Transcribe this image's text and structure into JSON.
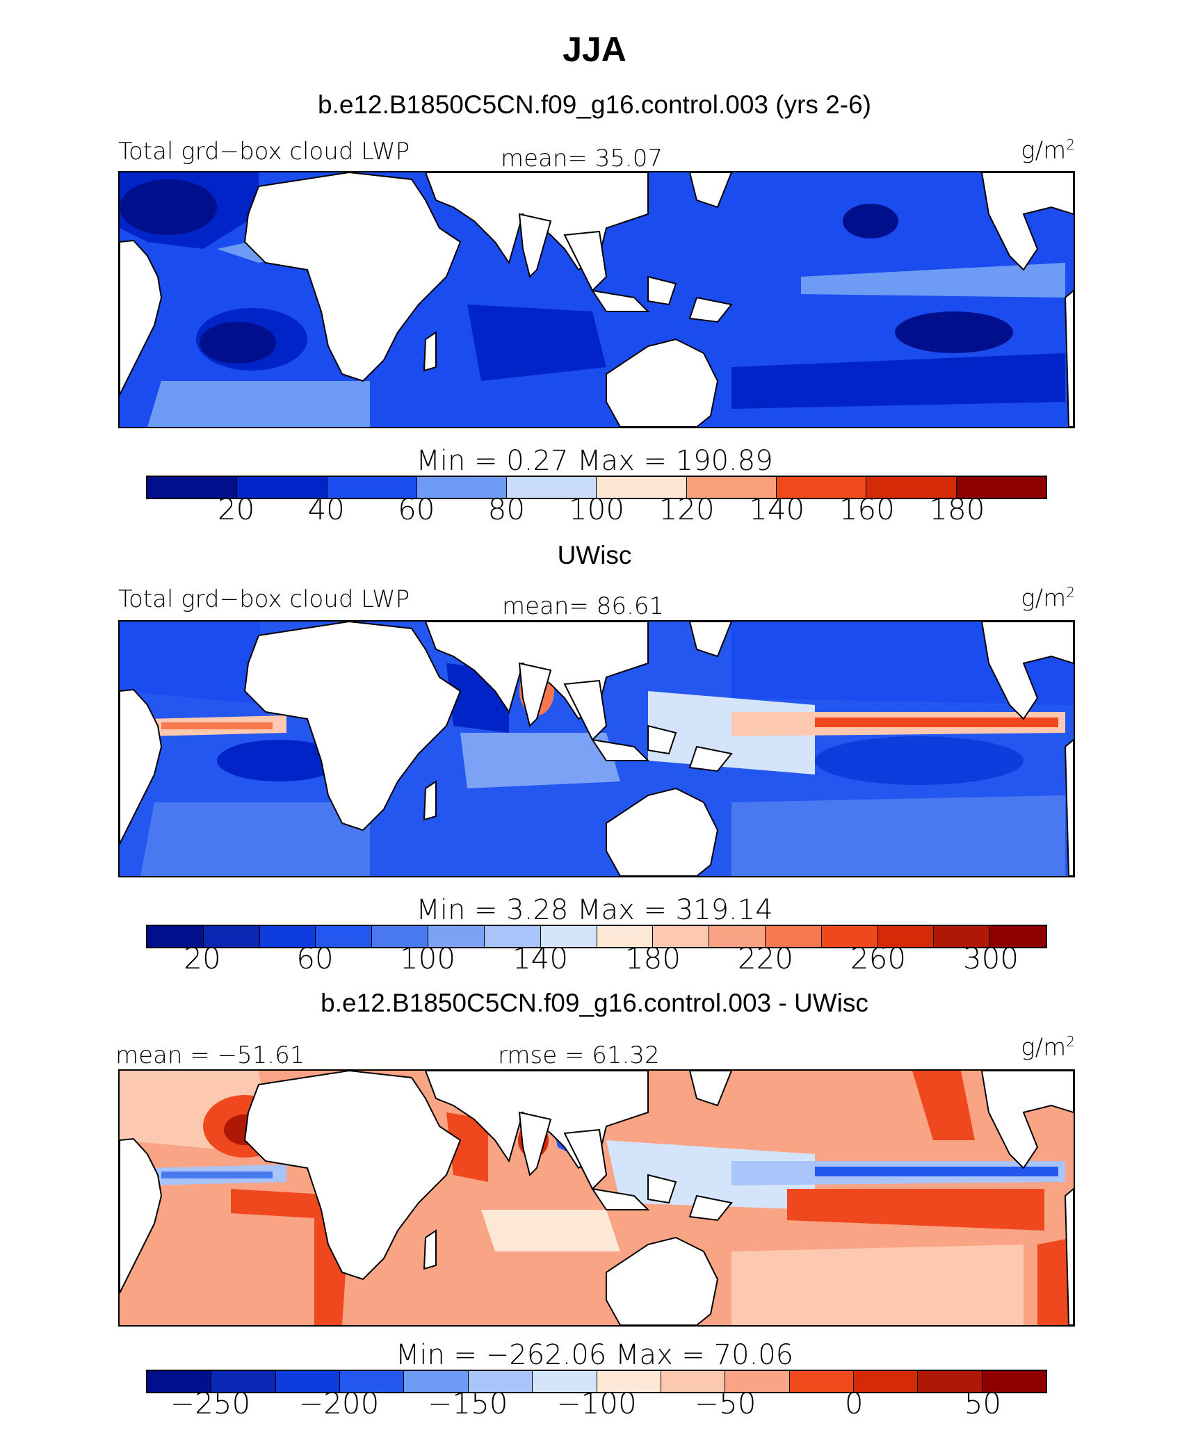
{
  "header": {
    "season": "JJA"
  },
  "panels": [
    {
      "case_title": "b.e12.B1850C5CN.f09_g16.control.003 (yrs 2-6)",
      "left_label": "Total grd−box cloud LWP",
      "center_label": "mean=  35.07",
      "units": "g/m",
      "units_sup": "2",
      "minmax": "Min  =     0.27  Max  =  190.89",
      "colorbar": {
        "colors": [
          "#000f8c",
          "#0024c8",
          "#1a4cf0",
          "#6e9cf5",
          "#c8dcfa",
          "#fde6d4",
          "#f8a07c",
          "#f04a1c",
          "#d42a08",
          "#8c0000"
        ],
        "ticks": [
          "20",
          "40",
          "60",
          "80",
          "100",
          "120",
          "140",
          "160",
          "180"
        ]
      }
    },
    {
      "case_title": "UWisc",
      "left_label": "Total grd−box cloud LWP",
      "center_label": "mean=  86.61",
      "units": "g/m",
      "units_sup": "2",
      "minmax": "Min  =     3.28  Max  =  319.14",
      "colorbar": {
        "colors": [
          "#000f8c",
          "#0a28b4",
          "#0f3cdc",
          "#2456f0",
          "#4a78f0",
          "#7ca2f5",
          "#a8c4f8",
          "#d4e4fb",
          "#fde8d8",
          "#fcc8b0",
          "#f9a484",
          "#f5784e",
          "#f0481e",
          "#d42a08",
          "#b01806",
          "#8c0000"
        ],
        "ticks": [
          "20",
          "60",
          "100",
          "140",
          "180",
          "220",
          "260",
          "300"
        ]
      }
    },
    {
      "case_title": "b.e12.B1850C5CN.f09_g16.control.003 - UWisc",
      "left_label": "mean = −51.61",
      "center_label": "rmse =   61.32",
      "units": "g/m",
      "units_sup": "2",
      "minmax": "Min  =  −262.06  Max  =    70.06",
      "colorbar": {
        "colors": [
          "#000f8c",
          "#0a28b4",
          "#0f3cdc",
          "#2456f0",
          "#6e9cf5",
          "#a8c4f8",
          "#d4e4fb",
          "#fde8d8",
          "#fcc8b0",
          "#f9a484",
          "#f04a1c",
          "#d42a08",
          "#b01806",
          "#8c0000"
        ],
        "ticks": [
          "−250",
          "−200",
          "−150",
          "−100",
          "−50",
          "0",
          "50"
        ]
      }
    }
  ],
  "chart_data": [
    {
      "type": "heatmap",
      "title": "b.e12.B1850C5CN.f09_g16.control.003 (yrs 2-6)",
      "variable": "Total grd−box cloud LWP",
      "units": "g/m2",
      "season": "JJA",
      "mean": 35.07,
      "min": 0.27,
      "max": 190.89,
      "colorbar_levels": [
        20,
        40,
        60,
        80,
        100,
        120,
        140,
        160,
        180
      ]
    },
    {
      "type": "heatmap",
      "title": "UWisc",
      "variable": "Total grd−box cloud LWP",
      "units": "g/m2",
      "season": "JJA",
      "mean": 86.61,
      "min": 3.28,
      "max": 319.14,
      "colorbar_levels": [
        20,
        40,
        60,
        80,
        100,
        120,
        140,
        160,
        180,
        200,
        220,
        240,
        260,
        280,
        300
      ]
    },
    {
      "type": "heatmap",
      "title": "b.e12.B1850C5CN.f09_g16.control.003 - UWisc",
      "units": "g/m2",
      "season": "JJA",
      "mean": -51.61,
      "rmse": 61.32,
      "min": -262.06,
      "max": 70.06,
      "colorbar_levels": [
        -250,
        -225,
        -200,
        -175,
        -150,
        -125,
        -100,
        -75,
        -50,
        -25,
        0,
        25,
        50
      ]
    }
  ]
}
